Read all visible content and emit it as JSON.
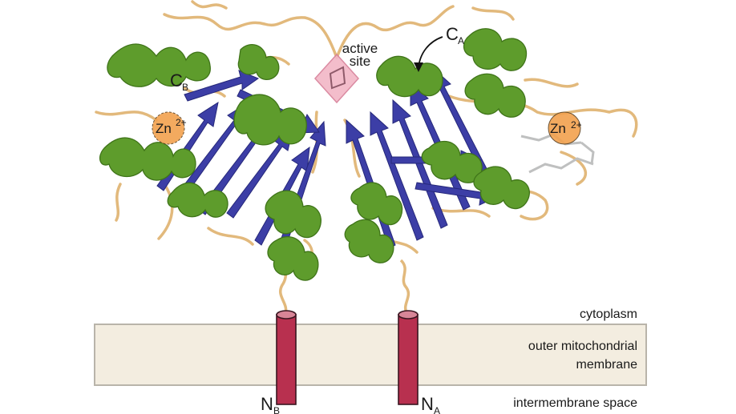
{
  "labels": {
    "active_site_line1": "active",
    "active_site_line2": "site",
    "c_b_main": "C",
    "c_b_sub": "B",
    "c_a_main": "C",
    "c_a_sub": "A",
    "zn_left": "Zn",
    "zn_left_charge": "2+",
    "zn_right": "Zn",
    "zn_right_charge": "2+",
    "n_b_main": "N",
    "n_b_sub": "B",
    "n_a_main": "N",
    "n_a_sub": "A"
  },
  "regions": {
    "cytoplasm": "cytoplasm",
    "membrane_line1": "outer mitochondrial",
    "membrane_line2": "membrane",
    "intermembrane": "intermembrane space"
  },
  "colors": {
    "helix": "#5e9c2c",
    "helix_dark": "#3f7419",
    "strand": "#3c3ea6",
    "strand_dark": "#26287a",
    "loop": "#e2b97c",
    "membrane_fill": "#f3ede0",
    "membrane_border": "#b9b4aa",
    "tm_helix": "#b8304f",
    "tm_helix_top": "#d88597",
    "zinc": "#f2a14e",
    "active_site": "#f2b6c6"
  }
}
